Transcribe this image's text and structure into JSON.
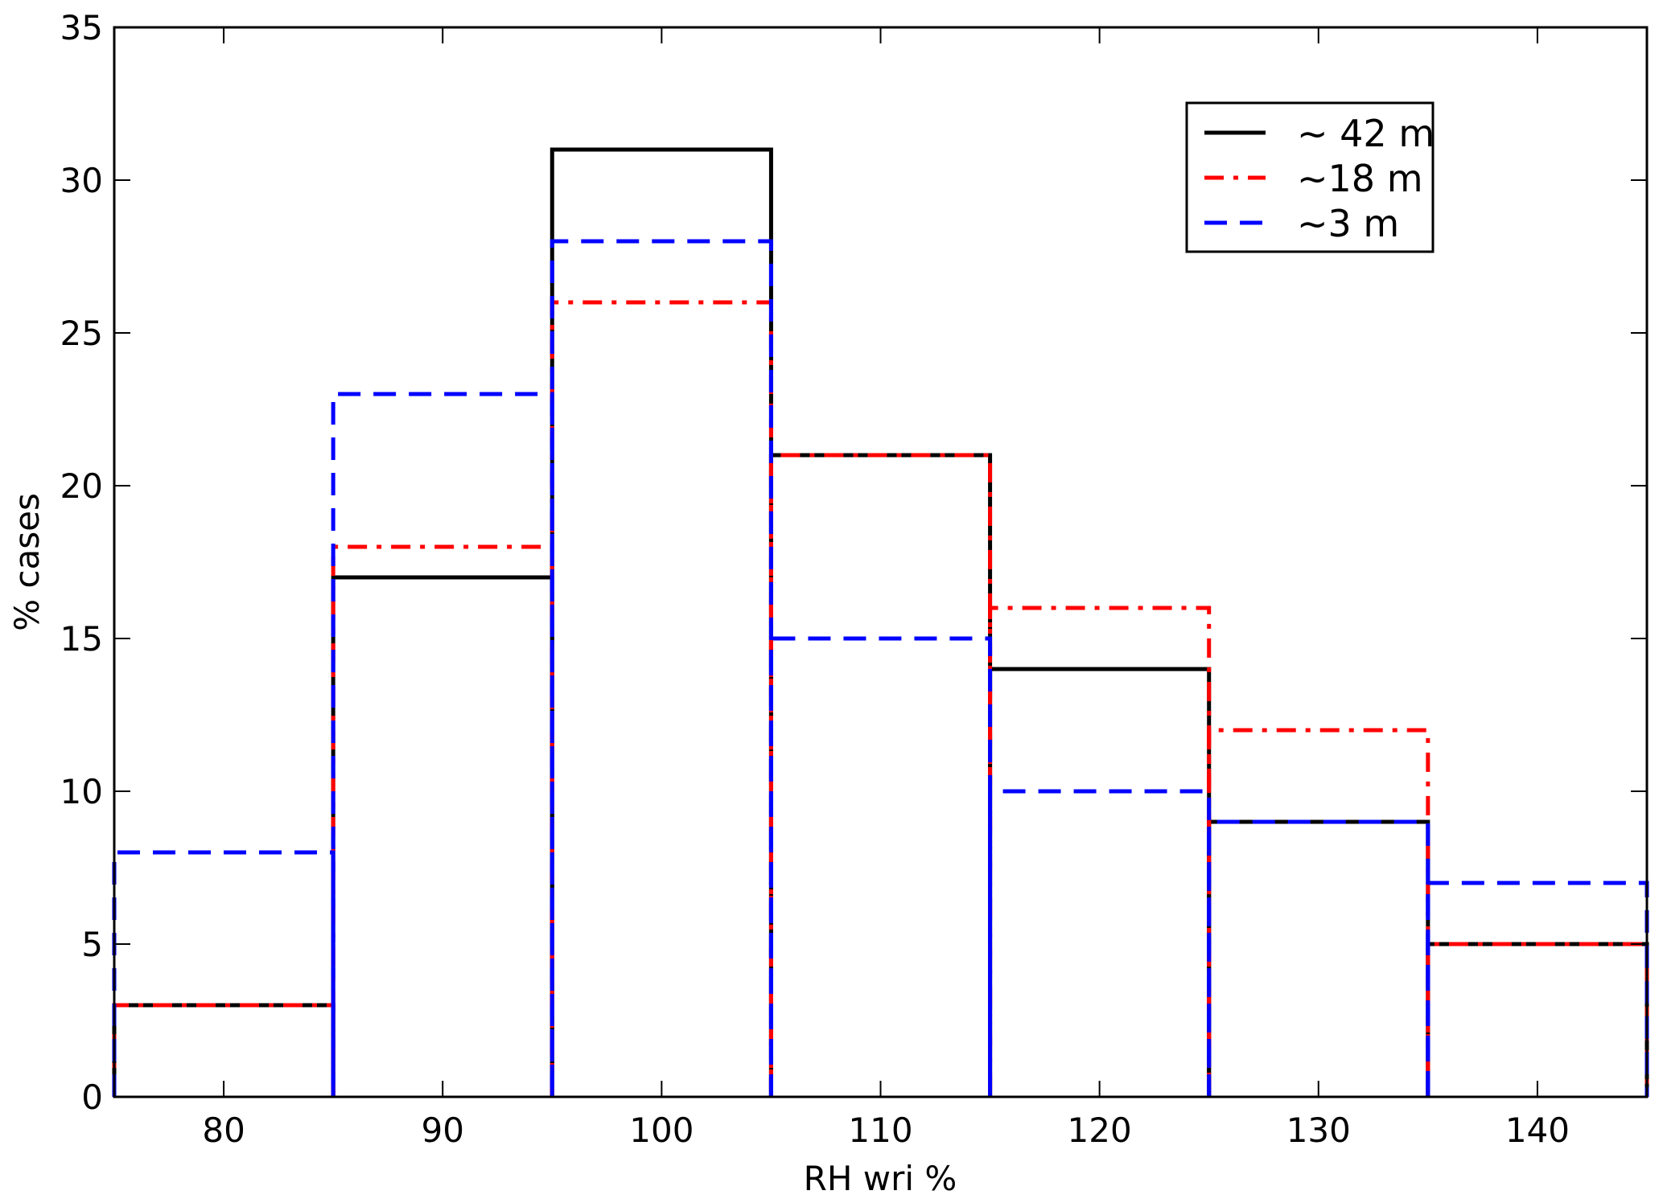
{
  "chart_data": {
    "type": "bar",
    "subtype": "step-histogram",
    "xlabel": "RH wri %",
    "ylabel": "% cases",
    "xlim": [
      75,
      145
    ],
    "ylim": [
      0,
      35
    ],
    "xticks": [
      80,
      90,
      100,
      110,
      120,
      130,
      140
    ],
    "yticks": [
      0,
      5,
      10,
      15,
      20,
      25,
      30,
      35
    ],
    "bin_edges": [
      75,
      85,
      95,
      105,
      115,
      125,
      135,
      145
    ],
    "categories": [
      "80",
      "90",
      "100",
      "110",
      "120",
      "130",
      "140"
    ],
    "legend_position": "top-right",
    "series": [
      {
        "name": "~ 42 m",
        "color": "#000000",
        "style": "solid",
        "values": [
          3,
          17,
          31,
          21,
          14,
          9,
          5
        ]
      },
      {
        "name": "~18 m",
        "color": "#ff0000",
        "style": "dashdot",
        "values": [
          3,
          18,
          26,
          21,
          16,
          12,
          5
        ]
      },
      {
        "name": "~3 m",
        "color": "#0000ff",
        "style": "dashed",
        "values": [
          8,
          23,
          28,
          15,
          10,
          9,
          7
        ]
      }
    ]
  }
}
